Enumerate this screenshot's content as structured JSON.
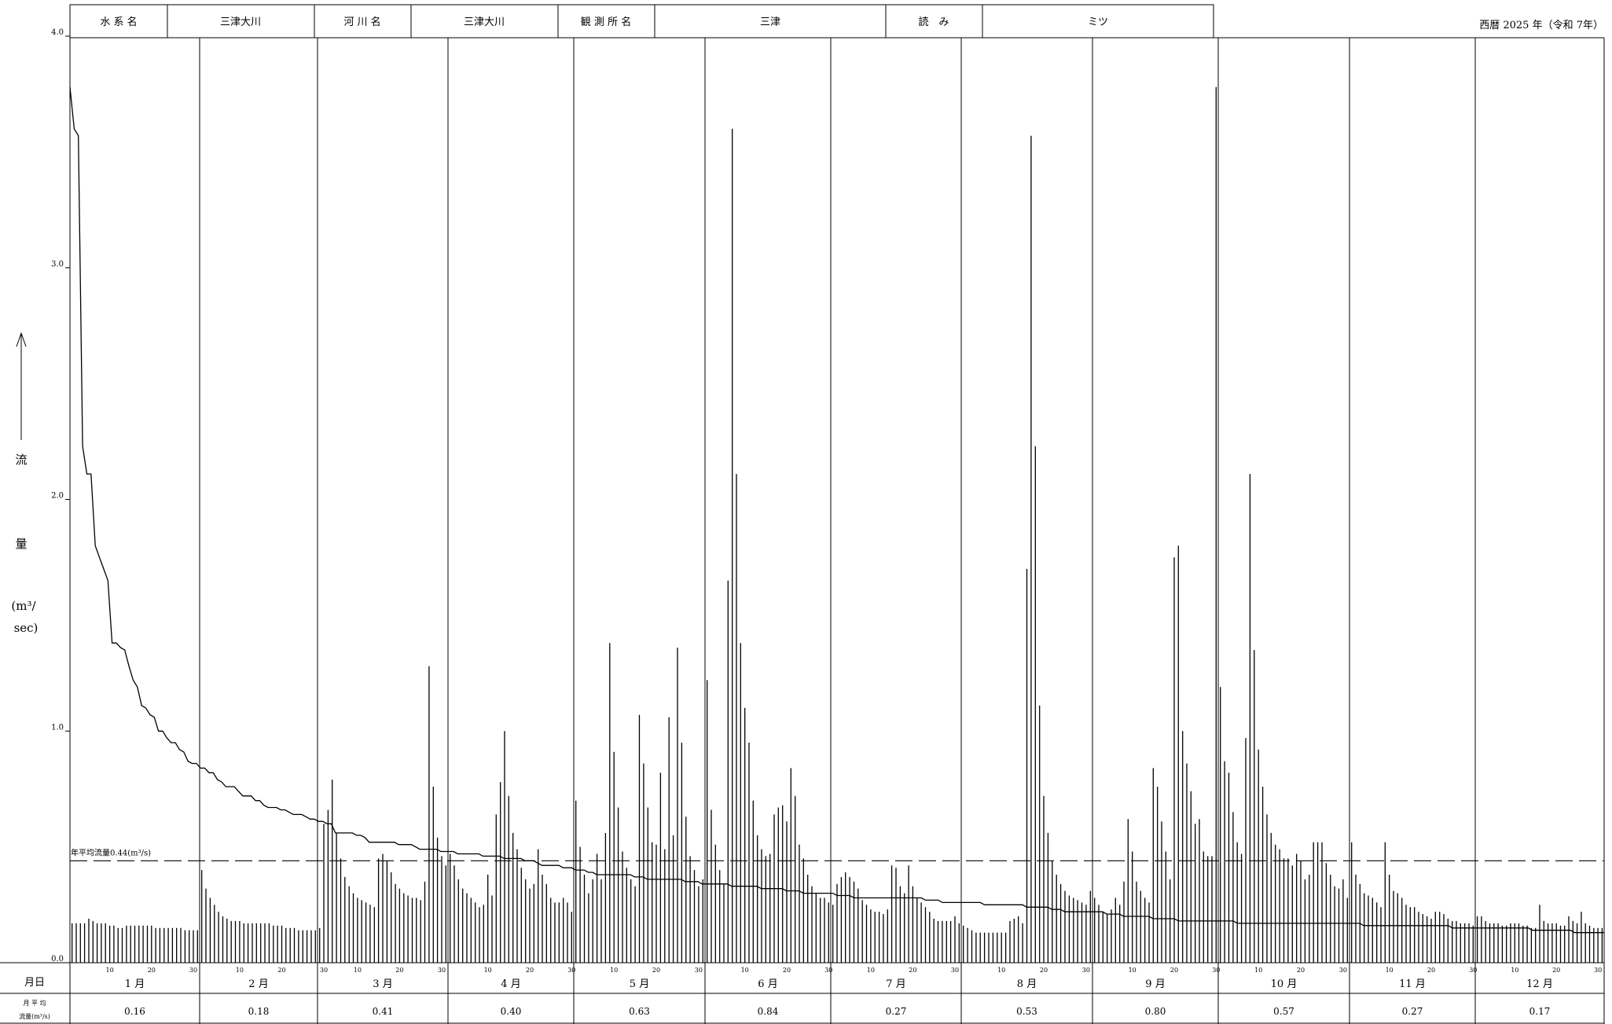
{
  "header": {
    "label_system": "水 系 名",
    "value_system": "三津大川",
    "label_river": "河 川 名",
    "value_river": "三津大川",
    "label_station": "観 測 所 名",
    "value_station": "三津",
    "label_reading": "読　み",
    "value_reading": "ミツ",
    "year_text": "西暦 2025 年（令和 7年）"
  },
  "chart_data": {
    "type": "bar",
    "ylabel_arrow": "↑",
    "ylabel_lines": [
      "流",
      "量",
      "(m³/",
      "sec)"
    ],
    "ylim": [
      0,
      4
    ],
    "yticks": [
      "0.0",
      "1.0",
      "2.0",
      "3.0",
      "4.0"
    ],
    "annual_mean": {
      "value": 0.44,
      "label": "年平均流量0.44(m³/s)"
    },
    "row_label_date": "月日",
    "row_label_avg_1": "月 平 均",
    "row_label_avg_2": "流量(m³/s)",
    "day_ticks": [
      "10",
      "20",
      "30"
    ],
    "months": [
      {
        "label": "1 月",
        "days": 31,
        "mean": "0.16"
      },
      {
        "label": "2 月",
        "days": 28,
        "mean": "0.18"
      },
      {
        "label": "3 月",
        "days": 31,
        "mean": "0.41"
      },
      {
        "label": "4 月",
        "days": 30,
        "mean": "0.40"
      },
      {
        "label": "5 月",
        "days": 31,
        "mean": "0.63"
      },
      {
        "label": "6 月",
        "days": 30,
        "mean": "0.84"
      },
      {
        "label": "7 月",
        "days": 31,
        "mean": "0.27"
      },
      {
        "label": "8 月",
        "days": 31,
        "mean": "0.53"
      },
      {
        "label": "9 月",
        "days": 30,
        "mean": "0.80"
      },
      {
        "label": "10 月",
        "days": 31,
        "mean": "0.57"
      },
      {
        "label": "11 月",
        "days": 30,
        "mean": "0.27"
      },
      {
        "label": "12 月",
        "days": 31,
        "mean": "0.17"
      }
    ],
    "daily_flow": [
      [
        0.17,
        0.17,
        0.17,
        0.17,
        0.19,
        0.18,
        0.17,
        0.17,
        0.17,
        0.16,
        0.16,
        0.15,
        0.15,
        0.16,
        0.16,
        0.16,
        0.16,
        0.16,
        0.16,
        0.16,
        0.15,
        0.15,
        0.15,
        0.15,
        0.15,
        0.15,
        0.15,
        0.14,
        0.14,
        0.14,
        0.14
      ],
      [
        0.4,
        0.32,
        0.28,
        0.25,
        0.22,
        0.2,
        0.19,
        0.18,
        0.18,
        0.18,
        0.17,
        0.17,
        0.17,
        0.17,
        0.17,
        0.17,
        0.17,
        0.16,
        0.16,
        0.16,
        0.15,
        0.15,
        0.15,
        0.14,
        0.14,
        0.14,
        0.14,
        0.14
      ],
      [
        0.15,
        0.6,
        0.66,
        0.79,
        0.56,
        0.45,
        0.37,
        0.33,
        0.3,
        0.28,
        0.27,
        0.26,
        0.25,
        0.24,
        0.45,
        0.47,
        0.44,
        0.39,
        0.34,
        0.32,
        0.3,
        0.29,
        0.28,
        0.28,
        0.27,
        0.35,
        1.28,
        0.76,
        0.54,
        0.46,
        0.42
      ],
      [
        0.47,
        0.42,
        0.36,
        0.32,
        0.3,
        0.28,
        0.26,
        0.24,
        0.25,
        0.38,
        0.29,
        0.64,
        0.78,
        1.0,
        0.72,
        0.56,
        0.49,
        0.41,
        0.36,
        0.32,
        0.34,
        0.49,
        0.38,
        0.34,
        0.28,
        0.26,
        0.26,
        0.28,
        0.26,
        0.22
      ],
      [
        0.7,
        0.5,
        0.38,
        0.3,
        0.36,
        0.47,
        0.36,
        0.56,
        1.38,
        0.91,
        0.67,
        0.48,
        0.41,
        0.36,
        0.33,
        1.07,
        0.86,
        0.67,
        0.52,
        0.51,
        0.82,
        0.49,
        1.06,
        0.55,
        1.36,
        0.95,
        0.63,
        0.46,
        0.4,
        0.33,
        0.36
      ],
      [
        1.22,
        0.66,
        0.51,
        0.4,
        0.34,
        1.65,
        3.6,
        2.11,
        1.38,
        1.1,
        0.95,
        0.7,
        0.55,
        0.49,
        0.46,
        0.47,
        0.64,
        0.67,
        0.68,
        0.61,
        0.84,
        0.72,
        0.51,
        0.45,
        0.38,
        0.33,
        0.3,
        0.28,
        0.28,
        0.26
      ],
      [
        0.25,
        0.34,
        0.37,
        0.39,
        0.37,
        0.35,
        0.32,
        0.27,
        0.25,
        0.23,
        0.22,
        0.22,
        0.21,
        0.23,
        0.42,
        0.41,
        0.33,
        0.3,
        0.42,
        0.33,
        0.28,
        0.26,
        0.24,
        0.22,
        0.19,
        0.18,
        0.18,
        0.18,
        0.18,
        0.2,
        0.17
      ],
      [
        0.16,
        0.15,
        0.14,
        0.13,
        0.13,
        0.13,
        0.13,
        0.13,
        0.13,
        0.13,
        0.13,
        0.18,
        0.19,
        0.2,
        0.17,
        1.7,
        3.57,
        2.23,
        1.11,
        0.72,
        0.56,
        0.44,
        0.38,
        0.34,
        0.31,
        0.29,
        0.28,
        0.27,
        0.26,
        0.25,
        0.31
      ],
      [
        0.28,
        0.25,
        0.22,
        0.21,
        0.23,
        0.28,
        0.25,
        0.35,
        0.62,
        0.48,
        0.35,
        0.31,
        0.28,
        0.26,
        0.84,
        0.76,
        0.61,
        0.48,
        0.36,
        1.75,
        1.8,
        1.0,
        0.86,
        0.74,
        0.6,
        0.62,
        0.48,
        0.46,
        0.46,
        3.78
      ],
      [
        1.19,
        0.87,
        0.82,
        0.65,
        0.52,
        0.47,
        0.97,
        2.11,
        1.35,
        0.92,
        0.76,
        0.64,
        0.56,
        0.51,
        0.49,
        0.45,
        0.45,
        0.42,
        0.47,
        0.44,
        0.36,
        0.38,
        0.52,
        0.52,
        0.52,
        0.43,
        0.38,
        0.33,
        0.32,
        0.36,
        0.28
      ],
      [
        0.52,
        0.38,
        0.34,
        0.3,
        0.29,
        0.28,
        0.26,
        0.24,
        0.52,
        0.38,
        0.31,
        0.3,
        0.28,
        0.25,
        0.24,
        0.24,
        0.22,
        0.21,
        0.2,
        0.19,
        0.22,
        0.22,
        0.21,
        0.19,
        0.18,
        0.18,
        0.17,
        0.17,
        0.17,
        0.16
      ],
      [
        0.2,
        0.2,
        0.18,
        0.17,
        0.17,
        0.17,
        0.16,
        0.16,
        0.17,
        0.17,
        0.17,
        0.16,
        0.16,
        0.15,
        0.15,
        0.25,
        0.18,
        0.17,
        0.17,
        0.17,
        0.16,
        0.16,
        0.2,
        0.18,
        0.17,
        0.22,
        0.17,
        0.16,
        0.15,
        0.15,
        0.15
      ]
    ]
  }
}
